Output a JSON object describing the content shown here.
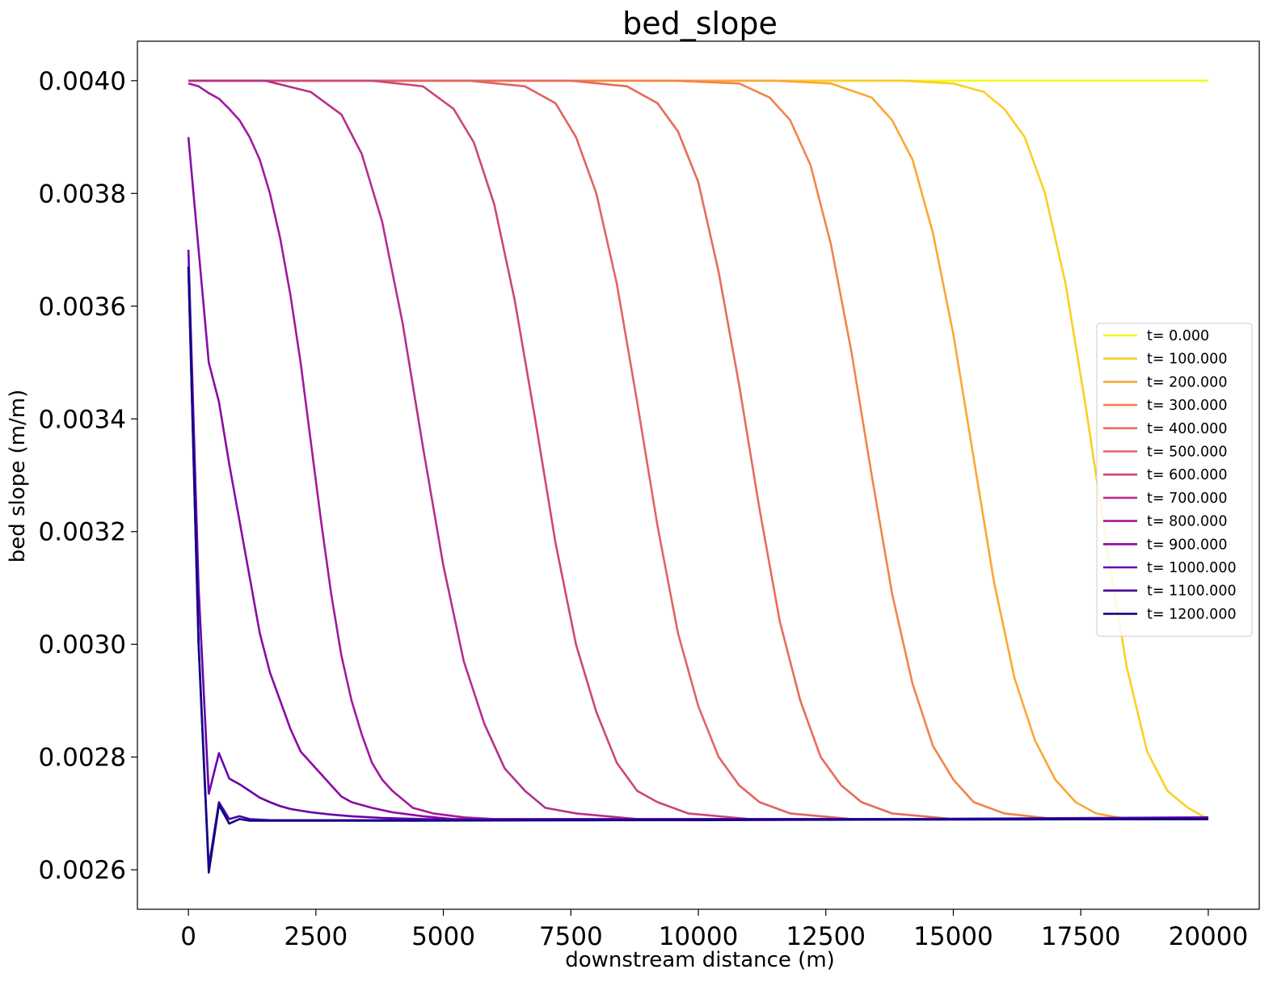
{
  "chart_data": {
    "type": "line",
    "title": "bed_slope",
    "xlabel": "downstream distance (m)",
    "ylabel": "bed slope (m/m)",
    "xlim": [
      -1000,
      21000
    ],
    "ylim": [
      0.00253,
      0.00407
    ],
    "xticks": [
      0,
      2500,
      5000,
      7500,
      10000,
      12500,
      15000,
      17500,
      20000
    ],
    "xtick_labels": [
      "0",
      "2500",
      "5000",
      "7500",
      "10000",
      "12500",
      "15000",
      "17500",
      "20000"
    ],
    "yticks": [
      0.0026,
      0.0028,
      0.003,
      0.0032,
      0.0034,
      0.0036,
      0.0038,
      0.004
    ],
    "ytick_labels": [
      "0.0026",
      "0.0028",
      "0.0030",
      "0.0032",
      "0.0034",
      "0.0036",
      "0.0038",
      "0.0040"
    ],
    "grid": false,
    "legend_position": "center-right",
    "series": [
      {
        "name": "t= 0.000",
        "color": "#f0f921",
        "x": [
          0,
          20000
        ],
        "y": [
          0.004,
          0.004
        ]
      },
      {
        "name": "t= 100.000",
        "color": "#fcce25",
        "x": [
          0,
          14000,
          15000,
          15600,
          16000,
          16400,
          16800,
          17200,
          17600,
          18000,
          18400,
          18800,
          19200,
          19600,
          20000
        ],
        "y": [
          0.004,
          0.004,
          0.003995,
          0.00398,
          0.00395,
          0.0039,
          0.0038,
          0.00364,
          0.00342,
          0.00318,
          0.00296,
          0.00281,
          0.00274,
          0.00271,
          0.00269
        ]
      },
      {
        "name": "t= 200.000",
        "color": "#fca636",
        "x": [
          0,
          11500,
          12600,
          13400,
          13800,
          14200,
          14600,
          15000,
          15400,
          15800,
          16200,
          16600,
          17000,
          17400,
          17800,
          18400,
          19200,
          20000
        ],
        "y": [
          0.004,
          0.004,
          0.003995,
          0.00397,
          0.00393,
          0.00386,
          0.00373,
          0.00355,
          0.00333,
          0.00311,
          0.00294,
          0.00283,
          0.00276,
          0.00272,
          0.0027,
          0.00269,
          0.00269,
          0.00269
        ]
      },
      {
        "name": "t= 300.000",
        "color": "#f2844b",
        "x": [
          0,
          9500,
          10800,
          11400,
          11800,
          12200,
          12600,
          13000,
          13400,
          13800,
          14200,
          14600,
          15000,
          15400,
          16000,
          17000,
          18000,
          20000
        ],
        "y": [
          0.004,
          0.004,
          0.003995,
          0.00397,
          0.00393,
          0.00385,
          0.00371,
          0.00352,
          0.0033,
          0.00309,
          0.00293,
          0.00282,
          0.00276,
          0.00272,
          0.0027,
          0.00269,
          0.00269,
          0.00269
        ]
      },
      {
        "name": "t= 400.000",
        "color": "#e66c5c",
        "x": [
          0,
          7500,
          8600,
          9200,
          9600,
          10000,
          10400,
          10800,
          11200,
          11600,
          12000,
          12400,
          12800,
          13200,
          13800,
          15000,
          16000,
          20000
        ],
        "y": [
          0.004,
          0.004,
          0.00399,
          0.00396,
          0.00391,
          0.00382,
          0.00366,
          0.00346,
          0.00324,
          0.00304,
          0.0029,
          0.0028,
          0.00275,
          0.00272,
          0.0027,
          0.00269,
          0.00269,
          0.00269
        ]
      },
      {
        "name": "t= 500.000",
        "color": "#e16462",
        "x": [
          0,
          5500,
          6600,
          7200,
          7600,
          8000,
          8400,
          8800,
          9200,
          9600,
          10000,
          10400,
          10800,
          11200,
          11800,
          13000,
          14000,
          20000
        ],
        "y": [
          0.004,
          0.004,
          0.00399,
          0.00396,
          0.0039,
          0.0038,
          0.00364,
          0.00343,
          0.00321,
          0.00302,
          0.00289,
          0.0028,
          0.00275,
          0.00272,
          0.0027,
          0.00269,
          0.00269,
          0.00269
        ]
      },
      {
        "name": "t= 600.000",
        "color": "#cc4778",
        "x": [
          0,
          3600,
          4600,
          5200,
          5600,
          6000,
          6400,
          6800,
          7200,
          7600,
          8000,
          8400,
          8800,
          9200,
          9800,
          11000,
          12000,
          20000
        ],
        "y": [
          0.004,
          0.004,
          0.00399,
          0.00395,
          0.00389,
          0.00378,
          0.00361,
          0.0034,
          0.00318,
          0.003,
          0.00288,
          0.00279,
          0.00274,
          0.00272,
          0.0027,
          0.00269,
          0.00269,
          0.00269
        ]
      },
      {
        "name": "t= 700.000",
        "color": "#b52f8c",
        "x": [
          0,
          1500,
          2400,
          3000,
          3400,
          3800,
          4200,
          4600,
          5000,
          5400,
          5800,
          6200,
          6600,
          7000,
          7600,
          8800,
          10000,
          20000
        ],
        "y": [
          0.004,
          0.004,
          0.00398,
          0.00394,
          0.00387,
          0.00375,
          0.00357,
          0.00335,
          0.00314,
          0.00297,
          0.00286,
          0.00278,
          0.00274,
          0.00271,
          0.0027,
          0.00269,
          0.00269,
          0.00269
        ]
      },
      {
        "name": "t= 800.000",
        "color": "#a01a9c",
        "x": [
          0,
          200,
          400,
          600,
          800,
          1000,
          1200,
          1400,
          1600,
          1800,
          2000,
          2200,
          2400,
          2600,
          2800,
          3000,
          3200,
          3400,
          3600,
          3800,
          4000,
          4400,
          4800,
          5400,
          6000,
          8000,
          20000
        ],
        "y": [
          0.003995,
          0.00399,
          0.003978,
          0.003968,
          0.00395,
          0.00393,
          0.0039,
          0.00386,
          0.0038,
          0.00372,
          0.00362,
          0.0035,
          0.00336,
          0.00322,
          0.00309,
          0.00298,
          0.0029,
          0.00284,
          0.00279,
          0.00276,
          0.00274,
          0.00271,
          0.0027,
          0.002693,
          0.00269,
          0.00269,
          0.00269
        ]
      },
      {
        "name": "t= 900.000",
        "color": "#8b0aa5",
        "x": [
          0,
          200,
          400,
          600,
          800,
          1000,
          1200,
          1400,
          1600,
          1800,
          2000,
          2200,
          2400,
          2600,
          2800,
          3000,
          3200,
          3600,
          4000,
          4600,
          5200,
          6000,
          8000,
          20000
        ],
        "y": [
          0.0039,
          0.0037,
          0.0035,
          0.00343,
          0.00332,
          0.00322,
          0.00312,
          0.00302,
          0.00295,
          0.0029,
          0.00285,
          0.00281,
          0.00279,
          0.00277,
          0.00275,
          0.00273,
          0.00272,
          0.00271,
          0.002702,
          0.002695,
          0.00269,
          0.00269,
          0.00269,
          0.00269
        ]
      },
      {
        "name": "t= 1000.000",
        "color": "#6a00a8",
        "x": [
          0,
          200,
          400,
          600,
          800,
          1000,
          1200,
          1400,
          1600,
          1800,
          2000,
          2200,
          2400,
          2800,
          3200,
          3800,
          4600,
          6000,
          10000,
          20000
        ],
        "y": [
          0.0037,
          0.0031,
          0.002735,
          0.002807,
          0.002762,
          0.002752,
          0.00274,
          0.002728,
          0.00272,
          0.002713,
          0.002708,
          0.002705,
          0.002702,
          0.002698,
          0.002695,
          0.002692,
          0.00269,
          0.002688,
          0.002688,
          0.002693
        ]
      },
      {
        "name": "t= 1100.000",
        "color": "#4c02a1",
        "x": [
          0,
          200,
          400,
          600,
          800,
          1000,
          1200,
          1600,
          2000,
          4000,
          8000,
          14000,
          20000
        ],
        "y": [
          0.00367,
          0.003,
          0.002605,
          0.00272,
          0.00269,
          0.002695,
          0.00269,
          0.002688,
          0.002688,
          0.002688,
          0.002689,
          0.00269,
          0.002692
        ]
      },
      {
        "name": "t= 1200.000",
        "color": "#0d0887",
        "x": [
          0,
          200,
          400,
          600,
          800,
          1000,
          1200,
          1600,
          2000,
          4000,
          8000,
          14000,
          20000
        ],
        "y": [
          0.00367,
          0.003,
          0.002595,
          0.002715,
          0.002682,
          0.00269,
          0.002687,
          0.002687,
          0.002687,
          0.002687,
          0.002688,
          0.002689,
          0.00269
        ]
      }
    ]
  }
}
